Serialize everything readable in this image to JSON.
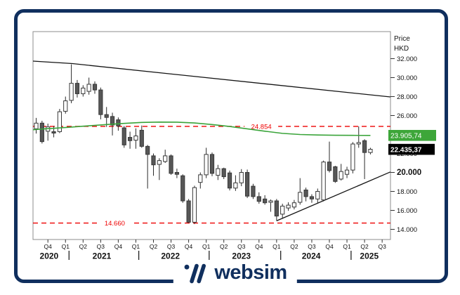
{
  "branding": {
    "logo_text": "websim",
    "brand_color": "#102f5e"
  },
  "chart_data": {
    "type": "candlestick",
    "interval": "monthly",
    "first_candle_month": "2020-08",
    "price_axis": {
      "title_lines": [
        "Price",
        "HKD"
      ],
      "ticks": [
        {
          "v": 32,
          "label": "32.000"
        },
        {
          "v": 30,
          "label": "30.000"
        },
        {
          "v": 28,
          "label": "28.000"
        },
        {
          "v": 26,
          "label": "26.000"
        },
        {
          "v": 24,
          "label": "24.000"
        },
        {
          "v": 22,
          "label": "22.000"
        },
        {
          "v": 20,
          "label": "20.000",
          "bold": true
        },
        {
          "v": 18,
          "label": "18.000"
        },
        {
          "v": 16,
          "label": "16.000"
        },
        {
          "v": 14,
          "label": "14.000"
        }
      ]
    },
    "x_axis": {
      "quarter_ticks": [
        {
          "candle": 3,
          "label": "Q4"
        },
        {
          "candle": 6,
          "label": "Q1"
        },
        {
          "candle": 9,
          "label": "Q2"
        },
        {
          "candle": 12,
          "label": "Q3"
        },
        {
          "candle": 15,
          "label": "Q4"
        },
        {
          "candle": 18,
          "label": "Q1"
        },
        {
          "candle": 21,
          "label": "Q2"
        },
        {
          "candle": 24,
          "label": "Q3"
        },
        {
          "candle": 27,
          "label": "Q4"
        },
        {
          "candle": 30,
          "label": "Q1"
        },
        {
          "candle": 33,
          "label": "Q2"
        },
        {
          "candle": 36,
          "label": "Q3"
        },
        {
          "candle": 39,
          "label": "Q4"
        },
        {
          "candle": 42,
          "label": "Q1"
        },
        {
          "candle": 45,
          "label": "Q2"
        },
        {
          "candle": 48,
          "label": "Q3"
        },
        {
          "candle": 51,
          "label": "Q4"
        },
        {
          "candle": 54,
          "label": "Q1"
        },
        {
          "candle": 57,
          "label": "Q2"
        },
        {
          "candle": 60,
          "label": "Q3"
        }
      ],
      "years": [
        {
          "label": "2020",
          "center_candle": 3.2
        },
        {
          "label": "2021",
          "center_candle": 12.2
        },
        {
          "label": "2022",
          "center_candle": 23.9
        },
        {
          "label": "2023",
          "center_candle": 36.0
        },
        {
          "label": "2024",
          "center_candle": 47.9
        },
        {
          "label": "2025",
          "center_candle": 57.8
        }
      ],
      "separators": [
        6.6,
        18.5,
        30.5,
        42.7,
        54.7
      ]
    },
    "candles_ohlc": [
      [
        24.6,
        25.75,
        24.1,
        25.2
      ],
      [
        25.2,
        25.45,
        23.05,
        23.25
      ],
      [
        24.35,
        25.15,
        23.35,
        24.8
      ],
      [
        24.3,
        24.9,
        23.7,
        24.15
      ],
      [
        24.3,
        26.7,
        24.15,
        26.4
      ],
      [
        26.45,
        28.0,
        26.2,
        27.55
      ],
      [
        27.6,
        31.4,
        27.3,
        29.4
      ],
      [
        29.4,
        29.75,
        27.9,
        28.3
      ],
      [
        28.3,
        29.2,
        28.0,
        28.9
      ],
      [
        28.55,
        30.0,
        28.2,
        29.3
      ],
      [
        29.3,
        29.6,
        28.3,
        28.7
      ],
      [
        28.7,
        28.95,
        25.6,
        26.1
      ],
      [
        26.1,
        26.9,
        24.8,
        25.8
      ],
      [
        25.9,
        26.3,
        23.9,
        25.0
      ],
      [
        25.55,
        25.8,
        24.4,
        24.9
      ],
      [
        24.7,
        24.9,
        22.6,
        22.9
      ],
      [
        23.7,
        24.3,
        22.5,
        23.35
      ],
      [
        23.4,
        24.65,
        22.5,
        23.85
      ],
      [
        24.45,
        24.95,
        22.6,
        22.75
      ],
      [
        22.75,
        22.9,
        18.3,
        21.9
      ],
      [
        21.75,
        22.0,
        19.65,
        20.8
      ],
      [
        20.85,
        21.5,
        19.2,
        21.25
      ],
      [
        21.15,
        22.4,
        21.0,
        21.75
      ],
      [
        21.75,
        21.9,
        19.75,
        19.9
      ],
      [
        20.0,
        20.4,
        19.4,
        19.8
      ],
      [
        19.65,
        19.8,
        16.8,
        17.0
      ],
      [
        17.0,
        17.2,
        14.66,
        14.75
      ],
      [
        14.75,
        18.6,
        14.55,
        18.4
      ],
      [
        18.95,
        20.0,
        18.3,
        19.75
      ],
      [
        19.75,
        22.6,
        19.4,
        21.9
      ],
      [
        21.9,
        22.1,
        19.6,
        19.9
      ],
      [
        19.7,
        20.8,
        19.2,
        20.4
      ],
      [
        20.4,
        20.5,
        19.3,
        19.55
      ],
      [
        19.95,
        20.2,
        18.1,
        18.35
      ],
      [
        18.35,
        19.7,
        18.05,
        18.9
      ],
      [
        18.9,
        20.35,
        18.55,
        20.0
      ],
      [
        20.0,
        20.3,
        17.3,
        17.5
      ],
      [
        18.55,
        18.8,
        17.2,
        17.45
      ],
      [
        17.45,
        17.9,
        16.7,
        16.95
      ],
      [
        17.2,
        17.6,
        16.6,
        16.8
      ],
      [
        16.85,
        17.15,
        15.85,
        17.0
      ],
      [
        17.0,
        17.2,
        14.9,
        15.4
      ],
      [
        15.6,
        16.7,
        15.1,
        16.45
      ],
      [
        16.25,
        16.85,
        15.95,
        16.55
      ],
      [
        16.35,
        17.1,
        16.1,
        16.8
      ],
      [
        16.85,
        19.4,
        16.6,
        17.9
      ],
      [
        18.15,
        18.4,
        16.95,
        17.45
      ],
      [
        17.45,
        17.7,
        16.8,
        17.2
      ],
      [
        17.2,
        18.3,
        16.7,
        18.0
      ],
      [
        17.1,
        21.25,
        16.95,
        21.1
      ],
      [
        21.1,
        23.25,
        20.0,
        20.2
      ],
      [
        20.6,
        20.7,
        18.9,
        19.05
      ],
      [
        19.3,
        20.9,
        19.15,
        20.1
      ],
      [
        19.8,
        20.6,
        19.4,
        20.25
      ],
      [
        20.25,
        23.2,
        19.9,
        23.0
      ],
      [
        23.0,
        24.85,
        22.6,
        23.15
      ],
      [
        23.35,
        23.5,
        19.3,
        22.1
      ],
      [
        22.1,
        22.6,
        21.9,
        22.44
      ]
    ],
    "ma_line": {
      "color": "#3aa43a",
      "points": [
        [
          0.46,
          24.5
        ],
        [
          2,
          24.58
        ],
        [
          4,
          24.65
        ],
        [
          7,
          24.78
        ],
        [
          10,
          24.92
        ],
        [
          13,
          25.05
        ],
        [
          16,
          25.17
        ],
        [
          19,
          25.27
        ],
        [
          22,
          25.31
        ],
        [
          25,
          25.3
        ],
        [
          28,
          25.22
        ],
        [
          31,
          25.05
        ],
        [
          34,
          24.85
        ],
        [
          37,
          24.6
        ],
        [
          40,
          24.35
        ],
        [
          43,
          24.12
        ],
        [
          46,
          24.0
        ],
        [
          49,
          23.95
        ],
        [
          52,
          23.92
        ],
        [
          55,
          23.91
        ],
        [
          58,
          23.9
        ]
      ]
    },
    "levels": [
      {
        "value": 24.854,
        "label": "24.854",
        "label_center_candle": 39.4
      },
      {
        "value": 14.66,
        "label": "14.660",
        "label_center_candle": 14.4
      }
    ],
    "trendlines": [
      {
        "name": "descending-resistance",
        "points": [
          [
            0.46,
            31.74
          ],
          [
            7.17,
            31.48
          ],
          [
            61.4,
            27.96
          ]
        ]
      },
      {
        "name": "ascending-support",
        "points": [
          [
            42.0,
            14.9
          ],
          [
            61.4,
            20.05
          ]
        ]
      }
    ],
    "badges": [
      {
        "text": "23.905,74",
        "value": 23.905,
        "bg": "#3da639",
        "fg": "#ffffff",
        "bold": false,
        "w": 68
      },
      {
        "text": "22.435,37",
        "value": 22.435,
        "bg": "#000000",
        "fg": "#ffffff",
        "bold": true,
        "w": 66
      }
    ],
    "colors": {
      "up_fill": "#ffffff",
      "down_fill": "#575757",
      "outline": "#383838",
      "wick": "#2b2b2b",
      "level": "#ee0000",
      "trend": "#141414",
      "axis_text": "#111111",
      "plot_border": "#8c8c8c"
    }
  }
}
